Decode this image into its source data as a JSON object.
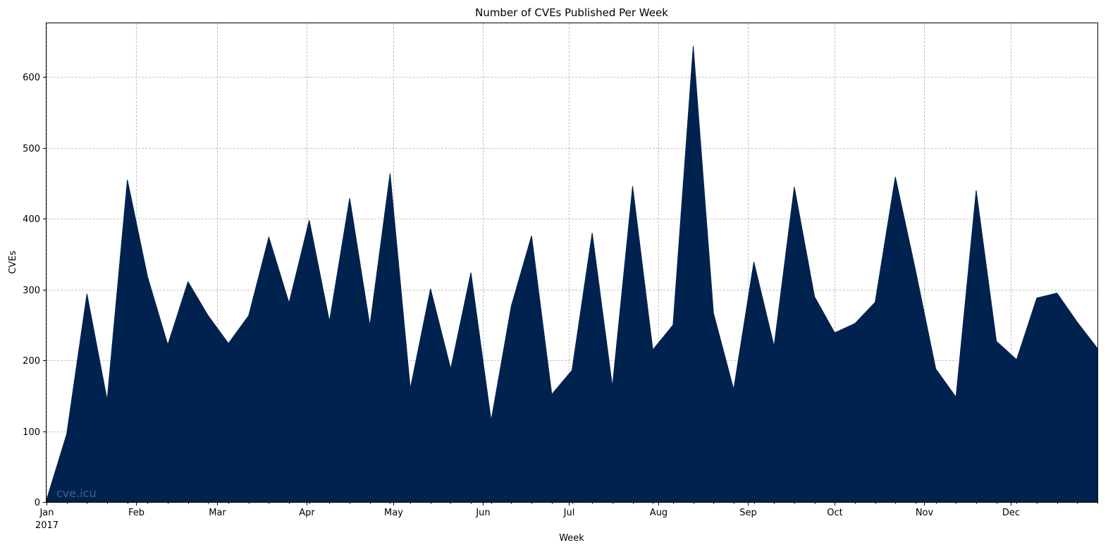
{
  "chart_data": {
    "type": "area",
    "title": "Number of CVEs Published Per Week",
    "xlabel": "Week",
    "ylabel": "CVEs",
    "x_range": [
      "2017-01-01",
      "2017-12-31"
    ],
    "ylim": [
      0,
      676
    ],
    "y_ticks": [
      0,
      100,
      200,
      300,
      400,
      500,
      600
    ],
    "x_ticks": [
      {
        "date": "2017-01-01",
        "label": "Jan",
        "sublabel": "2017"
      },
      {
        "date": "2017-02-01",
        "label": "Feb"
      },
      {
        "date": "2017-03-01",
        "label": "Mar"
      },
      {
        "date": "2017-04-01",
        "label": "Apr"
      },
      {
        "date": "2017-05-01",
        "label": "May"
      },
      {
        "date": "2017-06-01",
        "label": "Jun"
      },
      {
        "date": "2017-07-01",
        "label": "Jul"
      },
      {
        "date": "2017-08-01",
        "label": "Aug"
      },
      {
        "date": "2017-09-01",
        "label": "Sep"
      },
      {
        "date": "2017-10-01",
        "label": "Oct"
      },
      {
        "date": "2017-11-01",
        "label": "Nov"
      },
      {
        "date": "2017-12-01",
        "label": "Dec"
      }
    ],
    "grid": true,
    "color": "#00224e",
    "watermark": "cve.icu",
    "series": [
      {
        "x": [
          "2017-01-01",
          "2017-01-08",
          "2017-01-15",
          "2017-01-22",
          "2017-01-29",
          "2017-02-05",
          "2017-02-12",
          "2017-02-19",
          "2017-02-26",
          "2017-03-05",
          "2017-03-12",
          "2017-03-19",
          "2017-03-26",
          "2017-04-02",
          "2017-04-09",
          "2017-04-16",
          "2017-04-23",
          "2017-04-30",
          "2017-05-07",
          "2017-05-14",
          "2017-05-21",
          "2017-05-28",
          "2017-06-04",
          "2017-06-11",
          "2017-06-18",
          "2017-06-25",
          "2017-07-02",
          "2017-07-09",
          "2017-07-16",
          "2017-07-23",
          "2017-07-30",
          "2017-08-06",
          "2017-08-13",
          "2017-08-20",
          "2017-08-27",
          "2017-09-03",
          "2017-09-10",
          "2017-09-17",
          "2017-09-24",
          "2017-10-01",
          "2017-10-08",
          "2017-10-15",
          "2017-10-22",
          "2017-10-29",
          "2017-11-05",
          "2017-11-12",
          "2017-11-19",
          "2017-11-26",
          "2017-12-03",
          "2017-12-10",
          "2017-12-17",
          "2017-12-24",
          "2017-12-31"
        ],
        "values": [
          3,
          96,
          294,
          144,
          455,
          318,
          222,
          311,
          263,
          224,
          263,
          374,
          281,
          398,
          255,
          429,
          249,
          464,
          160,
          301,
          188,
          324,
          115,
          277,
          376,
          152,
          186,
          380,
          163,
          446,
          215,
          250,
          644,
          267,
          159,
          339,
          220,
          445,
          290,
          239,
          252,
          282,
          459,
          327,
          188,
          148,
          440,
          227,
          201,
          288,
          295,
          254,
          217
        ]
      }
    ]
  }
}
